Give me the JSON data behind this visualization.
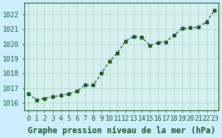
{
  "x": [
    0,
    1,
    2,
    3,
    4,
    5,
    6,
    7,
    8,
    9,
    10,
    11,
    12,
    13,
    14,
    15,
    16,
    17,
    18,
    19,
    20,
    21,
    22,
    23
  ],
  "y": [
    1016.6,
    1016.2,
    1016.3,
    1016.4,
    1016.5,
    1016.6,
    1016.8,
    1017.2,
    1017.2,
    1018.0,
    1018.8,
    1019.4,
    1020.2,
    1020.5,
    1020.45,
    1019.9,
    1020.1,
    1020.15,
    1020.6,
    1021.05,
    1021.1,
    1021.15,
    1021.5,
    1022.3
  ],
  "line_color": "#1a5c1a",
  "marker_color": "#1a5c1a",
  "bg_color": "#cceeff",
  "plot_bg_color": "#d6f0f0",
  "grid_color": "#aacccc",
  "title": "Graphe pression niveau de la mer (hPa)",
  "ylabel_ticks": [
    1016,
    1017,
    1018,
    1019,
    1020,
    1021,
    1022
  ],
  "ylim": [
    1015.5,
    1022.8
  ],
  "xlim": [
    -0.5,
    23.5
  ],
  "title_color": "#1a5c1a",
  "title_fontsize": 8.5,
  "tick_color": "#1a5c1a",
  "tick_fontsize": 7
}
